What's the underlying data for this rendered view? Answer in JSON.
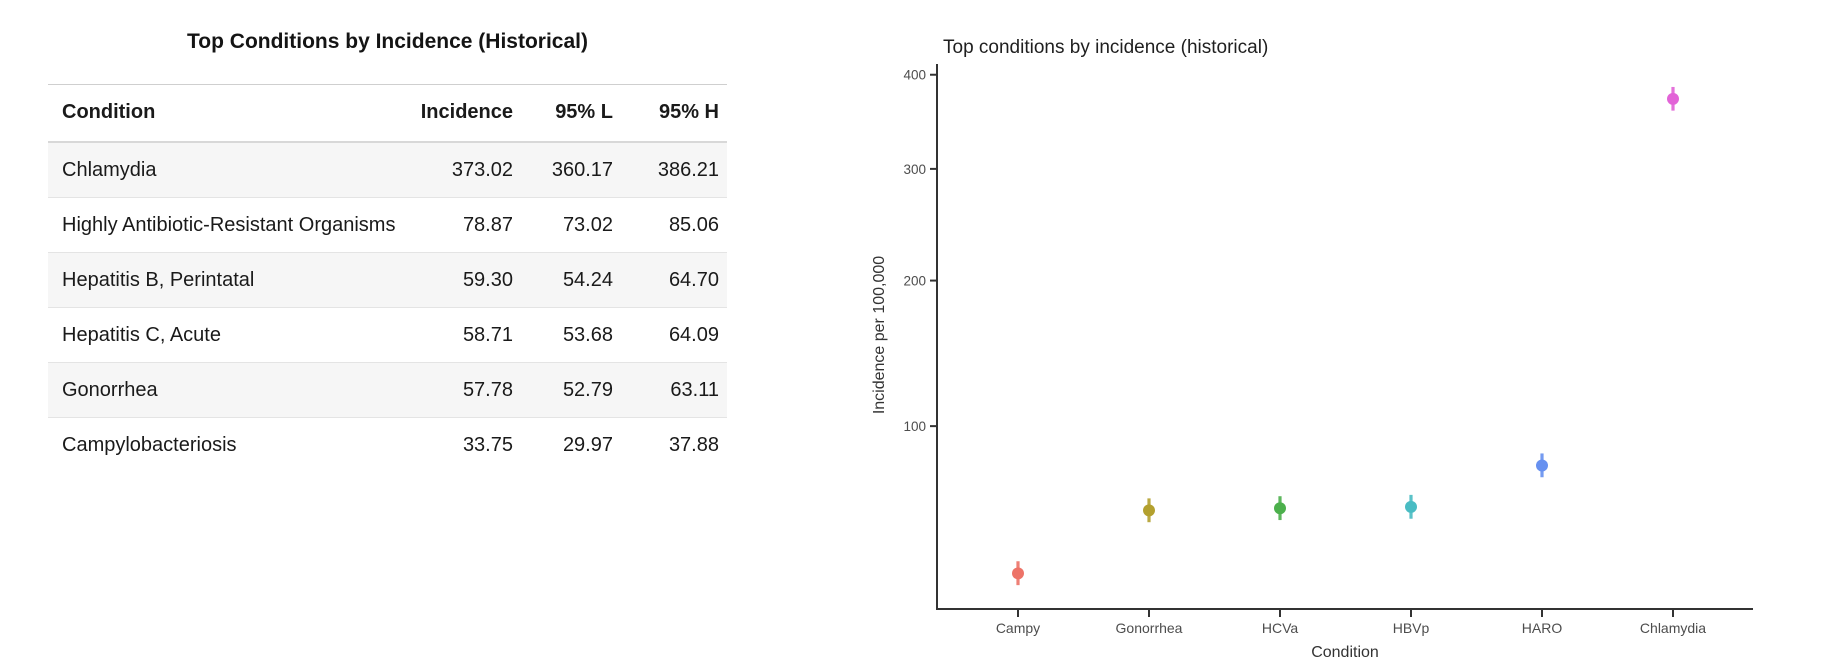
{
  "table": {
    "title": "Top Conditions by Incidence (Historical)",
    "columns": [
      "Condition",
      "Incidence",
      "95% L",
      "95% H"
    ],
    "rows": [
      {
        "condition": "Chlamydia",
        "incidence": "373.02",
        "low": "360.17",
        "high": "386.21"
      },
      {
        "condition": "Highly Antibiotic-Resistant Organisms",
        "incidence": "78.87",
        "low": "73.02",
        "high": "85.06"
      },
      {
        "condition": "Hepatitis B, Perintatal",
        "incidence": "59.30",
        "low": "54.24",
        "high": "64.70"
      },
      {
        "condition": "Hepatitis C, Acute",
        "incidence": "58.71",
        "low": "53.68",
        "high": "64.09"
      },
      {
        "condition": "Gonorrhea",
        "incidence": "57.78",
        "low": "52.79",
        "high": "63.11"
      },
      {
        "condition": "Campylobacteriosis",
        "incidence": "33.75",
        "low": "29.97",
        "high": "37.88"
      }
    ]
  },
  "chart_data": {
    "type": "scatter",
    "title": "Top conditions by incidence (historical)",
    "xlabel": "Condition",
    "ylabel": "Incidence per 100,000",
    "y_scale": "sqrt",
    "ylim": [
      23,
      410
    ],
    "y_ticks": [
      100,
      200,
      300,
      400
    ],
    "grid": false,
    "legend": "none",
    "categories": [
      "Campy",
      "Gonorrhea",
      "HCVa",
      "HBVp",
      "HARO",
      "Chlamydia"
    ],
    "series": [
      {
        "name": "Campy",
        "value": 33.75,
        "low": 29.97,
        "high": 37.88,
        "color": "#ED7368"
      },
      {
        "name": "Gonorrhea",
        "value": 57.78,
        "low": 52.79,
        "high": 63.11,
        "color": "#B3A02E"
      },
      {
        "name": "HCVa",
        "value": 58.71,
        "low": 53.68,
        "high": 64.09,
        "color": "#4CB04C"
      },
      {
        "name": "HBVp",
        "value": 59.3,
        "low": 54.24,
        "high": 64.7,
        "color": "#49BCC3"
      },
      {
        "name": "HARO",
        "value": 78.87,
        "low": 73.02,
        "high": 85.06,
        "color": "#6791F0"
      },
      {
        "name": "Chlamydia",
        "value": 373.02,
        "low": 360.17,
        "high": 386.21,
        "color": "#E263D7"
      }
    ],
    "colors": {
      "axis": "#333333",
      "tick_label": "#4d4d4d",
      "axis_title": "#333333",
      "title": "#1f1f1f"
    }
  }
}
